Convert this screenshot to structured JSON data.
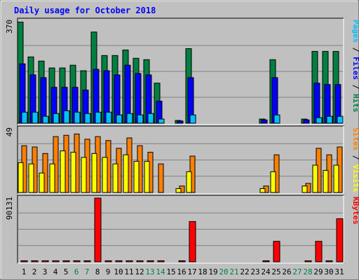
{
  "title": "Daily usage for October 2018",
  "colors": {
    "title": "#0000ff",
    "hits": "#008040",
    "files": "#0000ff",
    "pages": "#00c0ff",
    "visits": "#ffff00",
    "sites": "#ff8000",
    "kbytes": "#ff0000",
    "weekend_label": "#008040",
    "panel_bg": "#c0c0c0",
    "gridline": "#808080"
  },
  "chart_data": [
    {
      "type": "bar",
      "panel": "hits-files-pages",
      "ylabel_parts": [
        {
          "text": "Pages",
          "color_key": "pages"
        },
        {
          "text": " / ",
          "color_key": "sep"
        },
        {
          "text": "Files",
          "color_key": "files"
        },
        {
          "text": " / ",
          "color_key": "sep"
        },
        {
          "text": "Hits",
          "color_key": "hits"
        }
      ],
      "ymax_label": "370",
      "ylim": [
        0,
        370
      ],
      "grid": true,
      "categories": [
        "1",
        "2",
        "3",
        "4",
        "5",
        "6",
        "7",
        "8",
        "9",
        "10",
        "11",
        "12",
        "13",
        "14",
        "15",
        "16",
        "17",
        "18",
        "19",
        "20",
        "21",
        "22",
        "23",
        "24",
        "25",
        "26",
        "27",
        "28",
        "29",
        "30",
        "31"
      ],
      "weekend": [
        "6",
        "7",
        "13",
        "14",
        "20",
        "21",
        "27",
        "28"
      ],
      "series": [
        {
          "name": "Hits",
          "values": [
            366,
            240,
            225,
            200,
            200,
            210,
            190,
            330,
            245,
            245,
            265,
            235,
            230,
            145,
            0,
            10,
            270,
            0,
            0,
            0,
            0,
            0,
            0,
            15,
            230,
            0,
            0,
            15,
            260,
            260,
            260
          ]
        },
        {
          "name": "Files",
          "values": [
            215,
            175,
            165,
            130,
            130,
            130,
            120,
            195,
            190,
            175,
            210,
            180,
            175,
            80,
            0,
            8,
            165,
            0,
            0,
            0,
            0,
            0,
            0,
            12,
            165,
            0,
            0,
            12,
            145,
            140,
            140
          ]
        },
        {
          "name": "Pages",
          "values": [
            40,
            40,
            25,
            35,
            45,
            40,
            35,
            40,
            40,
            30,
            35,
            30,
            35,
            15,
            0,
            0,
            30,
            0,
            0,
            0,
            0,
            0,
            0,
            0,
            30,
            0,
            0,
            0,
            20,
            25,
            25
          ]
        }
      ]
    },
    {
      "type": "bar",
      "panel": "visits-sites",
      "ylabel_parts": [
        {
          "text": "Sites",
          "color_key": "sites"
        },
        {
          "text": " / ",
          "color_key": "sep"
        },
        {
          "text": "Visits",
          "color_key": "visits"
        }
      ],
      "ymax_label": "49",
      "ylim": [
        0,
        49
      ],
      "grid": true,
      "categories": [
        "1",
        "2",
        "3",
        "4",
        "5",
        "6",
        "7",
        "8",
        "9",
        "10",
        "11",
        "12",
        "13",
        "14",
        "15",
        "16",
        "17",
        "18",
        "19",
        "20",
        "21",
        "22",
        "23",
        "24",
        "25",
        "26",
        "27",
        "28",
        "29",
        "30",
        "31"
      ],
      "series": [
        {
          "name": "Sites",
          "values": [
            36,
            35,
            30,
            43,
            44,
            45,
            41,
            43,
            40,
            34,
            42,
            36,
            31,
            22,
            0,
            5,
            28,
            0,
            0,
            0,
            0,
            0,
            0,
            5,
            29,
            0,
            0,
            7,
            34,
            29,
            35
          ]
        },
        {
          "name": "Visits",
          "values": [
            23,
            22,
            15,
            22,
            32,
            31,
            27,
            30,
            27,
            22,
            29,
            24,
            24,
            0,
            0,
            3,
            16,
            0,
            0,
            0,
            0,
            0,
            0,
            3,
            16,
            0,
            0,
            5,
            21,
            17,
            21
          ]
        }
      ]
    },
    {
      "type": "bar",
      "panel": "kbytes",
      "ylabel_parts": [
        {
          "text": "KBytes",
          "color_key": "kbytes"
        }
      ],
      "ymax_label": "90131",
      "ylim": [
        0,
        90131
      ],
      "grid": true,
      "categories": [
        "1",
        "2",
        "3",
        "4",
        "5",
        "6",
        "7",
        "8",
        "9",
        "10",
        "11",
        "12",
        "13",
        "14",
        "15",
        "16",
        "17",
        "18",
        "19",
        "20",
        "21",
        "22",
        "23",
        "24",
        "25",
        "26",
        "27",
        "28",
        "29",
        "30",
        "31"
      ],
      "series": [
        {
          "name": "KBytes",
          "values": [
            1500,
            1500,
            1500,
            1500,
            1500,
            1500,
            1500,
            90131,
            1500,
            1500,
            1500,
            1500,
            1500,
            1500,
            0,
            1500,
            57000,
            0,
            0,
            0,
            0,
            0,
            0,
            1500,
            29000,
            0,
            0,
            1500,
            29000,
            1500,
            61000
          ]
        }
      ]
    }
  ]
}
